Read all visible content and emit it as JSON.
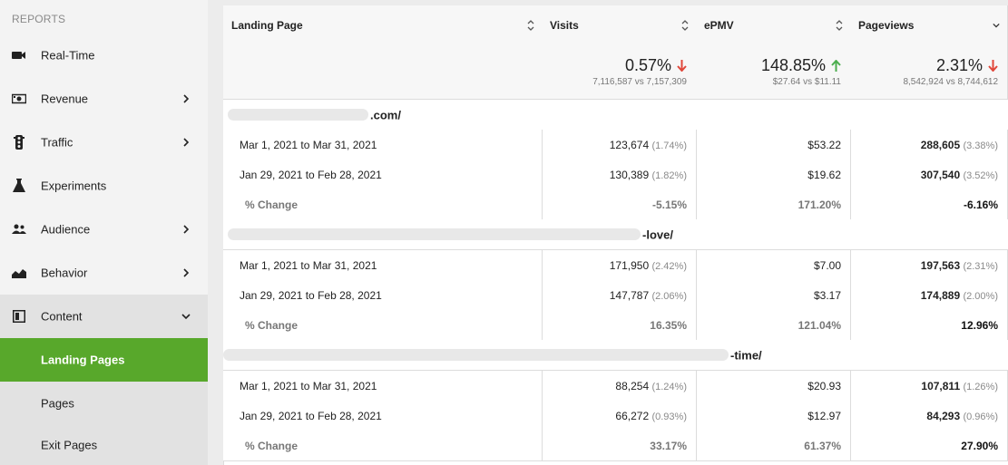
{
  "sidebar": {
    "section_label": "REPORTS",
    "items": [
      {
        "label": "Real-Time",
        "icon": "video-camera-icon",
        "has_chevron": false
      },
      {
        "label": "Revenue",
        "icon": "money-icon",
        "has_chevron": true
      },
      {
        "label": "Traffic",
        "icon": "traffic-light-icon",
        "has_chevron": true
      },
      {
        "label": "Experiments",
        "icon": "flask-icon",
        "has_chevron": false
      },
      {
        "label": "Audience",
        "icon": "people-icon",
        "has_chevron": true
      },
      {
        "label": "Behavior",
        "icon": "area-chart-icon",
        "has_chevron": true
      },
      {
        "label": "Content",
        "icon": "layout-icon",
        "has_chevron": true,
        "expanded": true
      }
    ],
    "sub_items": [
      {
        "label": "Landing Pages",
        "active": true
      },
      {
        "label": "Pages",
        "active": false
      },
      {
        "label": "Exit Pages",
        "active": false
      }
    ],
    "active_color": "#58a82b"
  },
  "table": {
    "columns": [
      "Landing Page",
      "Visits",
      "ePMV",
      "Pageviews"
    ],
    "summary": {
      "visits": {
        "value": "0.57%",
        "direction": "down",
        "compare": "7,116,587 vs 7,157,309"
      },
      "epmv": {
        "value": "148.85%",
        "direction": "up",
        "compare": "$27.64 vs $11.11"
      },
      "pageviews": {
        "value": "2.31%",
        "direction": "down",
        "compare": "8,542,924 vs 8,744,612"
      }
    },
    "groups": [
      {
        "page": ".com/",
        "rows": [
          {
            "period": "Mar 1, 2021 to Mar 31, 2021",
            "visits": "123,674",
            "visits_pct": "(1.74%)",
            "epmv": "$53.22",
            "pageviews": "288,605",
            "pageviews_pct": "(3.38%)"
          },
          {
            "period": "Jan 29, 2021 to Feb 28, 2021",
            "visits": "130,389",
            "visits_pct": "(1.82%)",
            "epmv": "$19.62",
            "pageviews": "307,540",
            "pageviews_pct": "(3.52%)"
          }
        ],
        "change": {
          "label": "% Change",
          "visits": "-5.15%",
          "epmv": "171.20%",
          "pageviews": "-6.16%"
        }
      },
      {
        "page": "-love/",
        "rows": [
          {
            "period": "Mar 1, 2021 to Mar 31, 2021",
            "visits": "171,950",
            "visits_pct": "(2.42%)",
            "epmv": "$7.00",
            "pageviews": "197,563",
            "pageviews_pct": "(2.31%)"
          },
          {
            "period": "Jan 29, 2021 to Feb 28, 2021",
            "visits": "147,787",
            "visits_pct": "(2.06%)",
            "epmv": "$3.17",
            "pageviews": "174,889",
            "pageviews_pct": "(2.00%)"
          }
        ],
        "change": {
          "label": "% Change",
          "visits": "16.35%",
          "epmv": "121.04%",
          "pageviews": "12.96%"
        }
      },
      {
        "page": "-time/",
        "rows": [
          {
            "period": "Mar 1, 2021 to Mar 31, 2021",
            "visits": "88,254",
            "visits_pct": "(1.24%)",
            "epmv": "$20.93",
            "pageviews": "107,811",
            "pageviews_pct": "(1.26%)"
          },
          {
            "period": "Jan 29, 2021 to Feb 28, 2021",
            "visits": "66,272",
            "visits_pct": "(0.93%)",
            "epmv": "$12.97",
            "pageviews": "84,293",
            "pageviews_pct": "(0.96%)"
          }
        ],
        "change": {
          "label": "% Change",
          "visits": "33.17%",
          "epmv": "61.37%",
          "pageviews": "27.90%"
        }
      }
    ],
    "colors": {
      "down": "#e0473a",
      "up": "#4cae4f"
    }
  }
}
